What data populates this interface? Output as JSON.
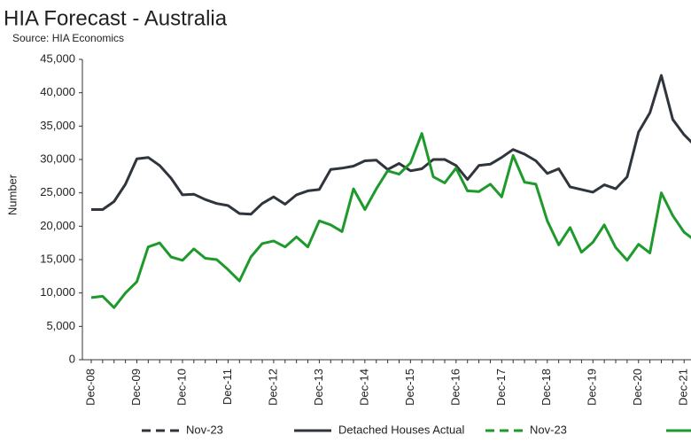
{
  "chart_data": {
    "type": "line",
    "title": "HIA Forecast - Australia",
    "subtitle": "Source: HIA Economics",
    "y_label": "Number",
    "categories": [
      "Dec-08",
      null,
      null,
      null,
      "Dec-09",
      null,
      null,
      null,
      "Dec-10",
      null,
      null,
      null,
      "Dec-11",
      null,
      null,
      null,
      "Dec-12",
      null,
      null,
      null,
      "Dec-13",
      null,
      null,
      null,
      "Dec-14",
      null,
      null,
      null,
      "Dec-15",
      null,
      null,
      null,
      "Dec-16",
      null,
      null,
      null,
      "Dec-17",
      null,
      null,
      null,
      "Dec-18",
      null,
      null,
      null,
      "Dec-19",
      null,
      null,
      null,
      "Dec-20",
      null,
      null,
      null,
      "Dec-21",
      null
    ],
    "series": [
      {
        "name": "Detached Houses Actual",
        "color": "#2f353d",
        "values": [
          22500,
          22500,
          23700,
          26300,
          30100,
          30300,
          29100,
          27200,
          24700,
          24800,
          24000,
          23400,
          23100,
          21900,
          21800,
          23400,
          24400,
          23300,
          24700,
          25300,
          25500,
          28500,
          28700,
          29000,
          29800,
          29900,
          28500,
          29400,
          28300,
          28600,
          30000,
          30000,
          29100,
          27000,
          29100,
          29300,
          30300,
          31500,
          30800,
          29800,
          27900,
          28600,
          25900,
          25500,
          25100,
          26200,
          25600,
          27400,
          34100,
          37000,
          42600,
          36000,
          33700,
          32000
        ]
      },
      {
        "color": "#1e9a2c",
        "values": [
          9300,
          9500,
          7800,
          10000,
          11700,
          16900,
          17500,
          15400,
          14900,
          16600,
          15200,
          15000,
          13500,
          11800,
          15400,
          17400,
          17800,
          16900,
          18400,
          16900,
          20800,
          20200,
          19200,
          25600,
          22500,
          25600,
          28300,
          27800,
          29500,
          33900,
          27400,
          26500,
          28700,
          25300,
          25200,
          26300,
          24400,
          30600,
          26600,
          26300,
          20800,
          17200,
          19800,
          16100,
          17600,
          20200,
          16800,
          14900,
          17300,
          16000,
          25000,
          21600,
          19100,
          17800
        ]
      }
    ],
    "legend": [
      {
        "name": "Nov-23",
        "color": "#2f353d",
        "dashed": true
      },
      {
        "name": "Detached Houses Actual",
        "color": "#2f353d",
        "dashed": false
      },
      {
        "name": "Nov-23",
        "color": "#1e9a2c",
        "dashed": true
      },
      {
        "color": "#1e9a2c",
        "dashed": false
      }
    ],
    "ylim": [
      0,
      45000
    ],
    "yticks": [
      0,
      {
        "value": 5000,
        "label": "5,000"
      },
      {
        "value": 10000,
        "label": "10,000"
      },
      {
        "value": 15000,
        "label": "15,000"
      },
      {
        "value": 20000,
        "label": "20,000"
      },
      {
        "value": 25000,
        "label": "25,000"
      },
      {
        "value": 30000,
        "label": "30,000"
      },
      {
        "value": 35000,
        "label": "35,000"
      },
      {
        "value": 40000,
        "label": "40,000"
      },
      {
        "value": 45000,
        "label": "45,000"
      }
    ],
    "grid": false
  }
}
